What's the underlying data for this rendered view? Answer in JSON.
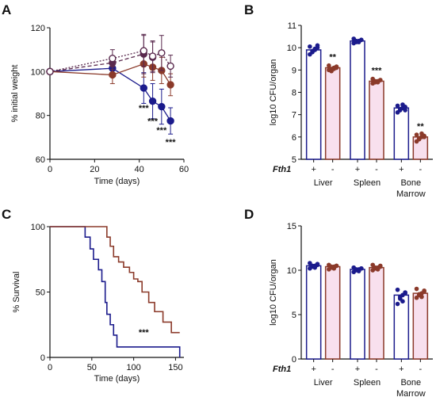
{
  "colors": {
    "navy": "#1b1b8c",
    "brown": "#8b3a2a",
    "plum": "#5a2a4e",
    "pink": "#f2c6e0",
    "axis": "#111111"
  },
  "panels": [
    {
      "id": "A",
      "label": "A"
    },
    {
      "id": "B",
      "label": "B"
    },
    {
      "id": "C",
      "label": "C"
    },
    {
      "id": "D",
      "label": "D"
    }
  ],
  "chart_data": [
    {
      "panel": "A",
      "type": "line",
      "xlabel": "Time (days)",
      "ylabel": "% initial weight",
      "xlim": [
        0,
        60
      ],
      "ylim": [
        60,
        120
      ],
      "xticks": [
        0,
        20,
        40,
        60
      ],
      "yticks": [
        60,
        80,
        100,
        120
      ],
      "grid": false,
      "series": [
        {
          "color": "navy",
          "style": "solid",
          "marker": "filled",
          "x": [
            0,
            28,
            42,
            46,
            50,
            54
          ],
          "y": [
            100,
            101.5,
            92.5,
            86.5,
            84,
            77.5
          ],
          "err": [
            0,
            3,
            7,
            8,
            8,
            6
          ]
        },
        {
          "color": "brown",
          "style": "solid",
          "marker": "filled",
          "x": [
            0,
            28,
            42,
            46,
            50,
            54
          ],
          "y": [
            100,
            98.5,
            103.5,
            102,
            100.5,
            94
          ],
          "err": [
            0,
            4,
            6,
            6,
            6,
            5
          ]
        },
        {
          "color": "plum",
          "style": "dashed",
          "marker": "filled",
          "x": [
            0,
            28,
            42,
            46
          ],
          "y": [
            100,
            104,
            108,
            106.5
          ],
          "err": [
            0,
            3,
            9,
            7
          ]
        },
        {
          "color": "plum",
          "style": "dotted",
          "marker": "open",
          "x": [
            0,
            28,
            42,
            46,
            50,
            54
          ],
          "y": [
            100,
            106,
            109.5,
            107,
            108.5,
            102.5
          ],
          "err": [
            0,
            4,
            7,
            7,
            8,
            5
          ]
        }
      ],
      "annotations": [
        {
          "text": "***",
          "x": 42,
          "y": 82
        },
        {
          "text": "***",
          "x": 46,
          "y": 76
        },
        {
          "text": "***",
          "x": 50,
          "y": 72
        },
        {
          "text": "***",
          "x": 54,
          "y": 66.5
        }
      ]
    },
    {
      "panel": "B",
      "type": "bar",
      "ylabel": "log10 CFU/organ",
      "ylim": [
        5,
        11
      ],
      "yticks": [
        5,
        6,
        7,
        8,
        9,
        10,
        11
      ],
      "row_label": "Fth1",
      "groups": [
        "Liver",
        "Spleen",
        "Bone\nMarrow"
      ],
      "group_labels": [
        "Liver",
        "Spleen",
        "Bone",
        "Marrow"
      ],
      "genotypes": [
        "+",
        "-"
      ],
      "values": [
        [
          9.9,
          9.1
        ],
        [
          10.3,
          8.5
        ],
        [
          7.3,
          6.0
        ]
      ],
      "points": [
        [
          [
            9.7,
            9.8,
            9.9,
            10.0,
            10.05,
            9.85,
            9.95,
            10.1
          ],
          [
            9.0,
            9.05,
            9.1,
            9.15,
            9.2,
            8.95,
            9.05,
            9.1
          ]
        ],
        [
          [
            10.2,
            10.25,
            10.3,
            10.35,
            10.4,
            10.3,
            10.25,
            10.35
          ],
          [
            8.4,
            8.45,
            8.5,
            8.55,
            8.6,
            8.5,
            8.45,
            8.55
          ]
        ],
        [
          [
            7.1,
            7.2,
            7.3,
            7.35,
            7.4,
            7.25,
            7.45,
            7.2
          ],
          [
            5.8,
            5.9,
            6.0,
            6.05,
            6.1,
            5.95,
            6.15,
            6.0
          ]
        ]
      ],
      "significance": [
        "**",
        "***",
        "**"
      ]
    },
    {
      "panel": "C",
      "type": "line",
      "xlabel": "Time (days)",
      "ylabel": "% Survival",
      "xlim": [
        0,
        160
      ],
      "ylim": [
        0,
        100
      ],
      "xticks": [
        0,
        50,
        100,
        150
      ],
      "yticks": [
        0,
        50,
        100
      ],
      "series": [
        {
          "color": "navy",
          "style": "step",
          "x": [
            0,
            42,
            48,
            52,
            58,
            62,
            66,
            68,
            72,
            76,
            80,
            155
          ],
          "y": [
            100,
            92,
            83,
            75,
            67,
            58,
            42,
            33,
            25,
            17,
            8,
            0
          ]
        },
        {
          "color": "brown",
          "style": "step",
          "x": [
            0,
            68,
            72,
            76,
            82,
            88,
            95,
            100,
            105,
            110,
            118,
            125,
            135,
            145,
            155
          ],
          "y": [
            100,
            92,
            85,
            77,
            73,
            69,
            65,
            60,
            58,
            50,
            42,
            35,
            27,
            19,
            19
          ]
        }
      ],
      "annotations": [
        {
          "text": "***",
          "x": 112,
          "y": 17
        }
      ]
    },
    {
      "panel": "D",
      "type": "bar",
      "ylabel": "log10 CFU/organ",
      "ylim": [
        0,
        15
      ],
      "yticks": [
        0,
        5,
        10,
        15
      ],
      "row_label": "Fth1",
      "groups": [
        "Liver",
        "Spleen",
        "Bone\nMarrow"
      ],
      "group_labels": [
        "Liver",
        "Spleen",
        "Bone",
        "Marrow"
      ],
      "genotypes": [
        "+",
        "-"
      ],
      "values": [
        [
          10.5,
          10.4
        ],
        [
          10.1,
          10.3
        ],
        [
          7.2,
          7.4
        ]
      ],
      "points": [
        [
          [
            10.2,
            10.4,
            10.5,
            10.6,
            10.8,
            10.5,
            10.3,
            10.7
          ],
          [
            10.1,
            10.3,
            10.4,
            10.5,
            10.6,
            10.4,
            10.2,
            10.5
          ]
        ],
        [
          [
            9.8,
            10.0,
            10.1,
            10.2,
            10.3,
            10.1,
            9.9,
            10.2
          ],
          [
            10.0,
            10.2,
            10.3,
            10.4,
            10.6,
            10.3,
            10.1,
            10.5
          ]
        ],
        [
          [
            6.2,
            6.8,
            7.2,
            7.5,
            7.8,
            7.0,
            6.5,
            7.4
          ],
          [
            6.9,
            7.2,
            7.4,
            7.6,
            7.9,
            7.3,
            7.0,
            7.7
          ]
        ]
      ],
      "significance": []
    }
  ]
}
